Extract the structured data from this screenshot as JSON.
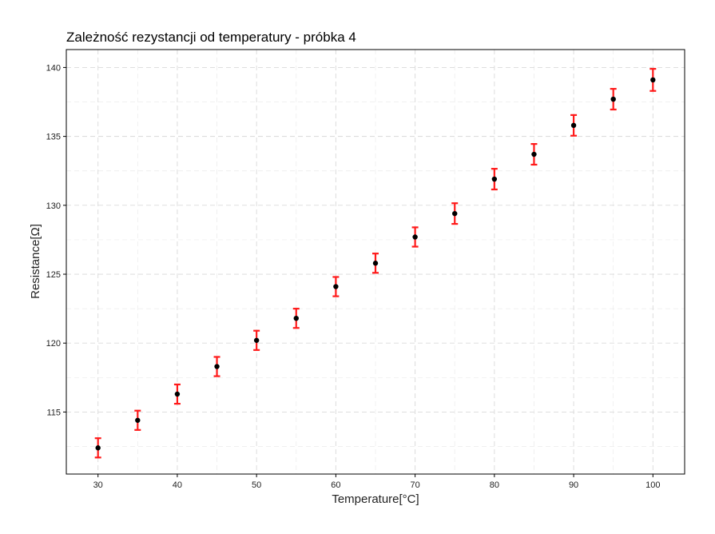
{
  "chart_data": {
    "type": "scatter",
    "title": "Zależność rezystancji od temperatury - próbka 4",
    "xlabel": "Temperature[°C]",
    "ylabel": "Resistance[Ω]",
    "xlim": [
      26,
      104
    ],
    "ylim": [
      110.5,
      141.3
    ],
    "x_ticks": [
      30,
      40,
      50,
      60,
      70,
      80,
      90,
      100
    ],
    "y_ticks": [
      115,
      120,
      125,
      130,
      135,
      140
    ],
    "x_minor_ticks": [
      35,
      45,
      55,
      65,
      75,
      85,
      95
    ],
    "y_minor_ticks": [
      112.5,
      117.5,
      122.5,
      127.5,
      132.5,
      137.5
    ],
    "grid": true,
    "series": [
      {
        "x": [
          30,
          35,
          40,
          45,
          50,
          55,
          60,
          65,
          70,
          75,
          80,
          85,
          90,
          95,
          100
        ],
        "y": [
          112.4,
          114.4,
          116.3,
          118.3,
          120.2,
          121.8,
          124.1,
          125.8,
          127.7,
          129.4,
          131.9,
          133.7,
          135.8,
          137.7,
          139.1
        ],
        "error": [
          0.7,
          0.7,
          0.7,
          0.7,
          0.7,
          0.7,
          0.7,
          0.7,
          0.7,
          0.75,
          0.75,
          0.75,
          0.75,
          0.75,
          0.8
        ]
      }
    ],
    "colors": {
      "errorbar": "#ff1a1a",
      "point": "#000000"
    }
  }
}
